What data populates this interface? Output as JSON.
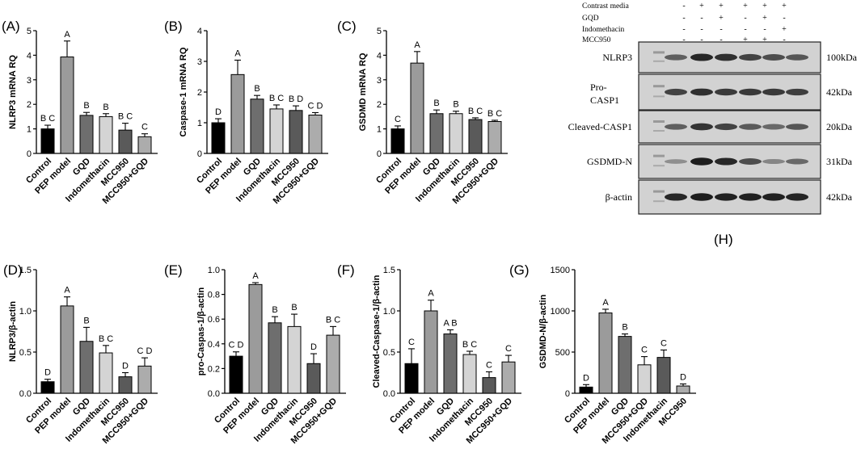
{
  "chart_data": [
    {
      "type": "bar",
      "panel": "(A)",
      "ylabel": "NLRP3 mRNA RQ",
      "xlabel": "",
      "ylim": [
        0,
        5
      ],
      "yticks": [
        "0",
        "1",
        "2",
        "3",
        "4",
        "5"
      ],
      "categories": [
        "Control",
        "PEP model",
        "GQD",
        "Indomethacin",
        "MCC950",
        "MCC950+GQD"
      ],
      "values": [
        1.0,
        3.93,
        1.55,
        1.5,
        0.95,
        0.68
      ],
      "errors": [
        0.15,
        0.65,
        0.12,
        0.12,
        0.28,
        0.12
      ],
      "labels": [
        "B C",
        "A",
        "B",
        "B",
        "B C",
        "C"
      ],
      "colors": [
        "#000000",
        "#9b9b9b",
        "#6e6e6e",
        "#d4d4d4",
        "#5a5a5a",
        "#acacac"
      ]
    },
    {
      "type": "bar",
      "panel": "(B)",
      "ylabel": "Caspase-1 mRNA RQ",
      "xlabel": "",
      "ylim": [
        0,
        4
      ],
      "yticks": [
        "0",
        "1",
        "2",
        "3",
        "4"
      ],
      "categories": [
        "Control",
        "PEP model",
        "GQD",
        "Indomethacin",
        "MCC950",
        "MCC950+GQD"
      ],
      "values": [
        1.0,
        2.57,
        1.77,
        1.45,
        1.4,
        1.25
      ],
      "errors": [
        0.13,
        0.47,
        0.12,
        0.13,
        0.15,
        0.08
      ],
      "labels": [
        "D",
        "A",
        "B",
        "B C",
        "B D",
        "C D"
      ],
      "colors": [
        "#000000",
        "#9b9b9b",
        "#6e6e6e",
        "#d4d4d4",
        "#5a5a5a",
        "#acacac"
      ]
    },
    {
      "type": "bar",
      "panel": "(C)",
      "ylabel": "GSDMD mRNA RQ",
      "xlabel": "",
      "ylim": [
        0,
        5
      ],
      "yticks": [
        "0",
        "1",
        "2",
        "3",
        "4",
        "5"
      ],
      "categories": [
        "Control",
        "PEP model",
        "GQD",
        "Indomethacin",
        "MCC950",
        "MCC950+GQD"
      ],
      "values": [
        1.0,
        3.68,
        1.62,
        1.62,
        1.38,
        1.3
      ],
      "errors": [
        0.12,
        0.47,
        0.15,
        0.1,
        0.07,
        0.05
      ],
      "labels": [
        "C",
        "A",
        "B",
        "B",
        "B C",
        "B C"
      ],
      "colors": [
        "#000000",
        "#9b9b9b",
        "#6e6e6e",
        "#d4d4d4",
        "#5a5a5a",
        "#acacac"
      ]
    },
    {
      "type": "bar",
      "panel": "(D)",
      "ylabel": "NLRP3/β-actin",
      "xlabel": "",
      "ylim": [
        0,
        1.5
      ],
      "yticks": [
        "0.0",
        "0.5",
        "1.0",
        "1.5"
      ],
      "categories": [
        "Control",
        "PEP model",
        "GQD",
        "Indomethacin",
        "MCC950",
        "MCC950+GQD"
      ],
      "values": [
        0.14,
        1.06,
        0.63,
        0.49,
        0.2,
        0.33
      ],
      "errors": [
        0.03,
        0.11,
        0.17,
        0.09,
        0.05,
        0.1
      ],
      "labels": [
        "D",
        "A",
        "B",
        "B C",
        "D",
        "C D"
      ],
      "colors": [
        "#000000",
        "#9b9b9b",
        "#6e6e6e",
        "#d4d4d4",
        "#5a5a5a",
        "#acacac"
      ]
    },
    {
      "type": "bar",
      "panel": "(E)",
      "ylabel": "pro-Caspas-1/β-actin",
      "xlabel": "",
      "ylim": [
        0,
        1.0
      ],
      "yticks": [
        "0.0",
        "0.2",
        "0.4",
        "0.6",
        "0.8",
        "1.0"
      ],
      "categories": [
        "Control",
        "PEP model",
        "GQD",
        "Indomethacin",
        "MCC950",
        "MCC950+GQD"
      ],
      "values": [
        0.3,
        0.88,
        0.57,
        0.54,
        0.24,
        0.47
      ],
      "errors": [
        0.035,
        0.015,
        0.05,
        0.1,
        0.08,
        0.07
      ],
      "labels": [
        "C D",
        "A",
        "B",
        "B",
        "D",
        "B C"
      ],
      "colors": [
        "#000000",
        "#9b9b9b",
        "#6e6e6e",
        "#d4d4d4",
        "#5a5a5a",
        "#acacac"
      ]
    },
    {
      "type": "bar",
      "panel": "(F)",
      "ylabel": "Cleaved-Caspase-1/β-actin",
      "xlabel": "",
      "ylim": [
        0,
        1.5
      ],
      "yticks": [
        "0.0",
        "0.5",
        "1.0",
        "1.5"
      ],
      "categories": [
        "Control",
        "PEP model",
        "GQD",
        "Indomethacin",
        "MCC950",
        "MCC950+GQD"
      ],
      "values": [
        0.36,
        1.0,
        0.72,
        0.47,
        0.19,
        0.38
      ],
      "errors": [
        0.18,
        0.13,
        0.05,
        0.04,
        0.07,
        0.08
      ],
      "labels": [
        "C",
        "A",
        "A B",
        "B C",
        "C",
        "C"
      ],
      "colors": [
        "#000000",
        "#9b9b9b",
        "#6e6e6e",
        "#d4d4d4",
        "#5a5a5a",
        "#acacac"
      ]
    },
    {
      "type": "bar",
      "panel": "(G)",
      "ylabel": "GSDMD-N/β-actin",
      "xlabel": "",
      "ylim": [
        0,
        1500
      ],
      "yticks": [
        "0",
        "500",
        "1000",
        "1500"
      ],
      "categories": [
        "Control",
        "PEP model",
        "GQD",
        "MCC950+GQD",
        "Indomethacin",
        "MCC950"
      ],
      "values": [
        75,
        975,
        690,
        345,
        435,
        88
      ],
      "errors": [
        30,
        45,
        30,
        100,
        90,
        25
      ],
      "labels": [
        "D",
        "A",
        "B",
        "C",
        "C",
        "D"
      ],
      "colors": [
        "#000000",
        "#9b9b9b",
        "#6e6e6e",
        "#d4d4d4",
        "#5a5a5a",
        "#acacac"
      ]
    }
  ],
  "western_blot": {
    "panel": "(H)",
    "conditions": [
      {
        "name": "Contrast media",
        "signs": [
          "-",
          "+",
          "+",
          "+",
          "+",
          "+"
        ]
      },
      {
        "name": "GQD",
        "signs": [
          "-",
          "-",
          "+",
          "-",
          "+",
          "-"
        ]
      },
      {
        "name": "Indomethacin",
        "signs": [
          "-",
          "-",
          "-",
          "-",
          "-",
          "+"
        ]
      },
      {
        "name": "MCC950",
        "signs": [
          "-",
          "-",
          "-",
          "+",
          "+",
          "-"
        ]
      }
    ],
    "rows": [
      {
        "label": "NLRP3",
        "kda": "100kDa",
        "intensity": [
          0.55,
          0.85,
          0.8,
          0.7,
          0.65,
          0.6
        ]
      },
      {
        "label": "Pro-\nCASP1",
        "kda": "42kDa",
        "intensity": [
          0.7,
          0.8,
          0.75,
          0.75,
          0.75,
          0.72
        ]
      },
      {
        "label": "Cleaved-CASP1",
        "kda": "20kDa",
        "intensity": [
          0.55,
          0.78,
          0.7,
          0.58,
          0.5,
          0.6
        ]
      },
      {
        "label": "GSDMD-N",
        "kda": "31kDa",
        "intensity": [
          0.3,
          0.9,
          0.85,
          0.65,
          0.35,
          0.5
        ]
      },
      {
        "label": "β-actin",
        "kda": "42kDa",
        "intensity": [
          0.85,
          0.9,
          0.88,
          0.88,
          0.88,
          0.86
        ]
      }
    ]
  }
}
